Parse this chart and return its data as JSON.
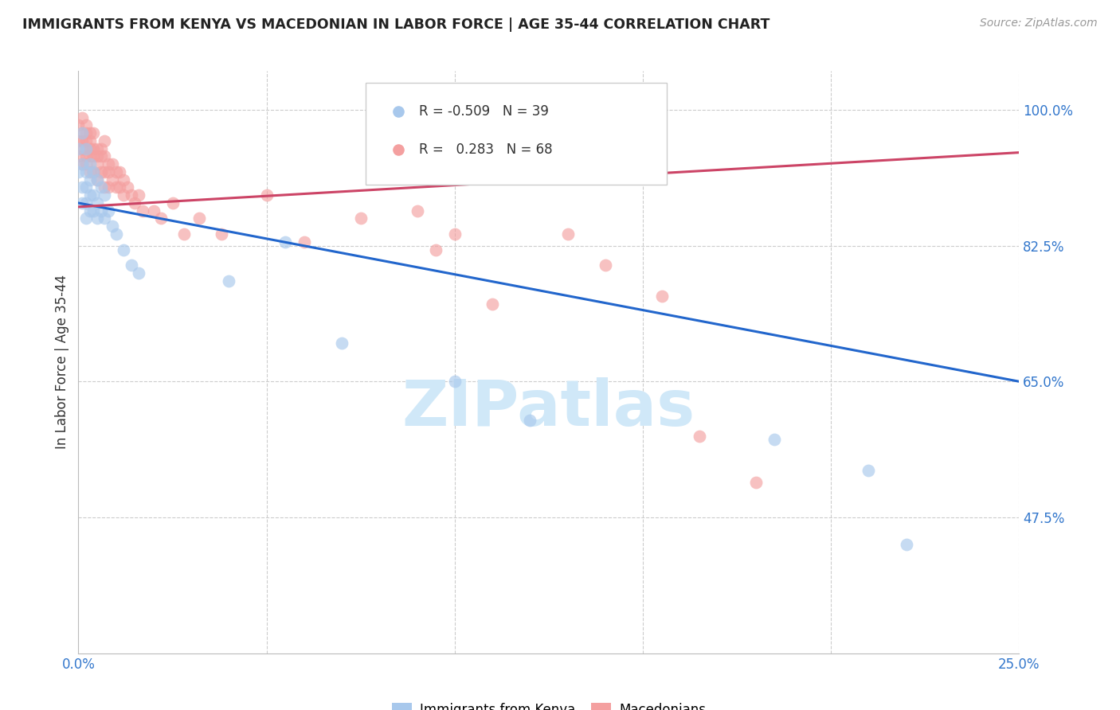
{
  "title": "IMMIGRANTS FROM KENYA VS MACEDONIAN IN LABOR FORCE | AGE 35-44 CORRELATION CHART",
  "source": "Source: ZipAtlas.com",
  "ylabel": "In Labor Force | Age 35-44",
  "xlim": [
    0.0,
    0.25
  ],
  "ylim": [
    0.3,
    1.05
  ],
  "xticks": [
    0.0,
    0.05,
    0.1,
    0.15,
    0.2,
    0.25
  ],
  "xticklabels": [
    "0.0%",
    "",
    "",
    "",
    "",
    "25.0%"
  ],
  "yticks": [
    1.0,
    0.825,
    0.65,
    0.475
  ],
  "yticklabels": [
    "100.0%",
    "82.5%",
    "65.0%",
    "47.5%"
  ],
  "kenya_R": -0.509,
  "kenya_N": 39,
  "macedonian_R": 0.283,
  "macedonian_N": 68,
  "kenya_color": "#A8C8EC",
  "macedonian_color": "#F4A0A0",
  "kenya_line_color": "#2266CC",
  "macedonian_line_color": "#CC4466",
  "watermark_color": "#D0E8F8",
  "kenya_line_x0": 0.0,
  "kenya_line_y0": 0.88,
  "kenya_line_x1": 0.25,
  "kenya_line_y1": 0.65,
  "mac_line_x0": 0.0,
  "mac_line_y0": 0.875,
  "mac_line_x1": 0.25,
  "mac_line_y1": 0.945,
  "kenya_scatter_x": [
    0.0,
    0.0,
    0.001,
    0.001,
    0.001,
    0.001,
    0.002,
    0.002,
    0.002,
    0.002,
    0.002,
    0.003,
    0.003,
    0.003,
    0.003,
    0.004,
    0.004,
    0.004,
    0.005,
    0.005,
    0.005,
    0.006,
    0.006,
    0.007,
    0.007,
    0.008,
    0.009,
    0.01,
    0.012,
    0.014,
    0.016,
    0.04,
    0.055,
    0.07,
    0.1,
    0.12,
    0.185,
    0.21,
    0.22
  ],
  "kenya_scatter_y": [
    0.95,
    0.92,
    0.97,
    0.93,
    0.9,
    0.88,
    0.95,
    0.92,
    0.9,
    0.88,
    0.86,
    0.93,
    0.91,
    0.89,
    0.87,
    0.92,
    0.89,
    0.87,
    0.91,
    0.88,
    0.86,
    0.9,
    0.87,
    0.89,
    0.86,
    0.87,
    0.85,
    0.84,
    0.82,
    0.8,
    0.79,
    0.78,
    0.83,
    0.7,
    0.65,
    0.6,
    0.575,
    0.535,
    0.44
  ],
  "macedonian_scatter_x": [
    0.0,
    0.0,
    0.0,
    0.001,
    0.001,
    0.001,
    0.001,
    0.001,
    0.002,
    0.002,
    0.002,
    0.002,
    0.002,
    0.002,
    0.003,
    0.003,
    0.003,
    0.003,
    0.003,
    0.004,
    0.004,
    0.004,
    0.004,
    0.005,
    0.005,
    0.005,
    0.005,
    0.006,
    0.006,
    0.006,
    0.007,
    0.007,
    0.007,
    0.007,
    0.008,
    0.008,
    0.008,
    0.009,
    0.009,
    0.01,
    0.01,
    0.011,
    0.011,
    0.012,
    0.012,
    0.013,
    0.014,
    0.015,
    0.016,
    0.017,
    0.02,
    0.022,
    0.025,
    0.028,
    0.032,
    0.038,
    0.05,
    0.06,
    0.075,
    0.09,
    0.095,
    0.1,
    0.11,
    0.13,
    0.14,
    0.155,
    0.165,
    0.18
  ],
  "macedonian_scatter_y": [
    0.98,
    0.96,
    0.94,
    0.99,
    0.97,
    0.96,
    0.95,
    0.93,
    0.98,
    0.97,
    0.96,
    0.95,
    0.94,
    0.93,
    0.97,
    0.96,
    0.95,
    0.94,
    0.92,
    0.97,
    0.95,
    0.94,
    0.92,
    0.95,
    0.94,
    0.93,
    0.91,
    0.95,
    0.94,
    0.92,
    0.96,
    0.94,
    0.92,
    0.9,
    0.93,
    0.92,
    0.9,
    0.93,
    0.91,
    0.92,
    0.9,
    0.92,
    0.9,
    0.91,
    0.89,
    0.9,
    0.89,
    0.88,
    0.89,
    0.87,
    0.87,
    0.86,
    0.88,
    0.84,
    0.86,
    0.84,
    0.89,
    0.83,
    0.86,
    0.87,
    0.82,
    0.84,
    0.75,
    0.84,
    0.8,
    0.76,
    0.58,
    0.52
  ]
}
